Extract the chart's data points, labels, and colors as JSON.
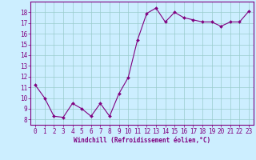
{
  "x": [
    0,
    1,
    2,
    3,
    4,
    5,
    6,
    7,
    8,
    9,
    10,
    11,
    12,
    13,
    14,
    15,
    16,
    17,
    18,
    19,
    20,
    21,
    22,
    23
  ],
  "y": [
    11.2,
    10.0,
    8.3,
    8.2,
    9.5,
    9.0,
    8.3,
    9.5,
    8.3,
    10.4,
    11.9,
    15.4,
    17.9,
    18.4,
    17.1,
    18.0,
    17.5,
    17.3,
    17.1,
    17.1,
    16.7,
    17.1,
    17.1,
    18.1
  ],
  "line_color": "#800080",
  "marker": "D",
  "marker_size": 2,
  "bg_color": "#cceeff",
  "grid_color": "#99cccc",
  "xlabel": "Windchill (Refroidissement éolien,°C)",
  "xlim": [
    -0.5,
    23.5
  ],
  "ylim": [
    7.5,
    19.0
  ],
  "yticks": [
    8,
    9,
    10,
    11,
    12,
    13,
    14,
    15,
    16,
    17,
    18
  ],
  "xticks": [
    0,
    1,
    2,
    3,
    4,
    5,
    6,
    7,
    8,
    9,
    10,
    11,
    12,
    13,
    14,
    15,
    16,
    17,
    18,
    19,
    20,
    21,
    22,
    23
  ],
  "label_fontsize": 5.5,
  "tick_fontsize": 5.5
}
